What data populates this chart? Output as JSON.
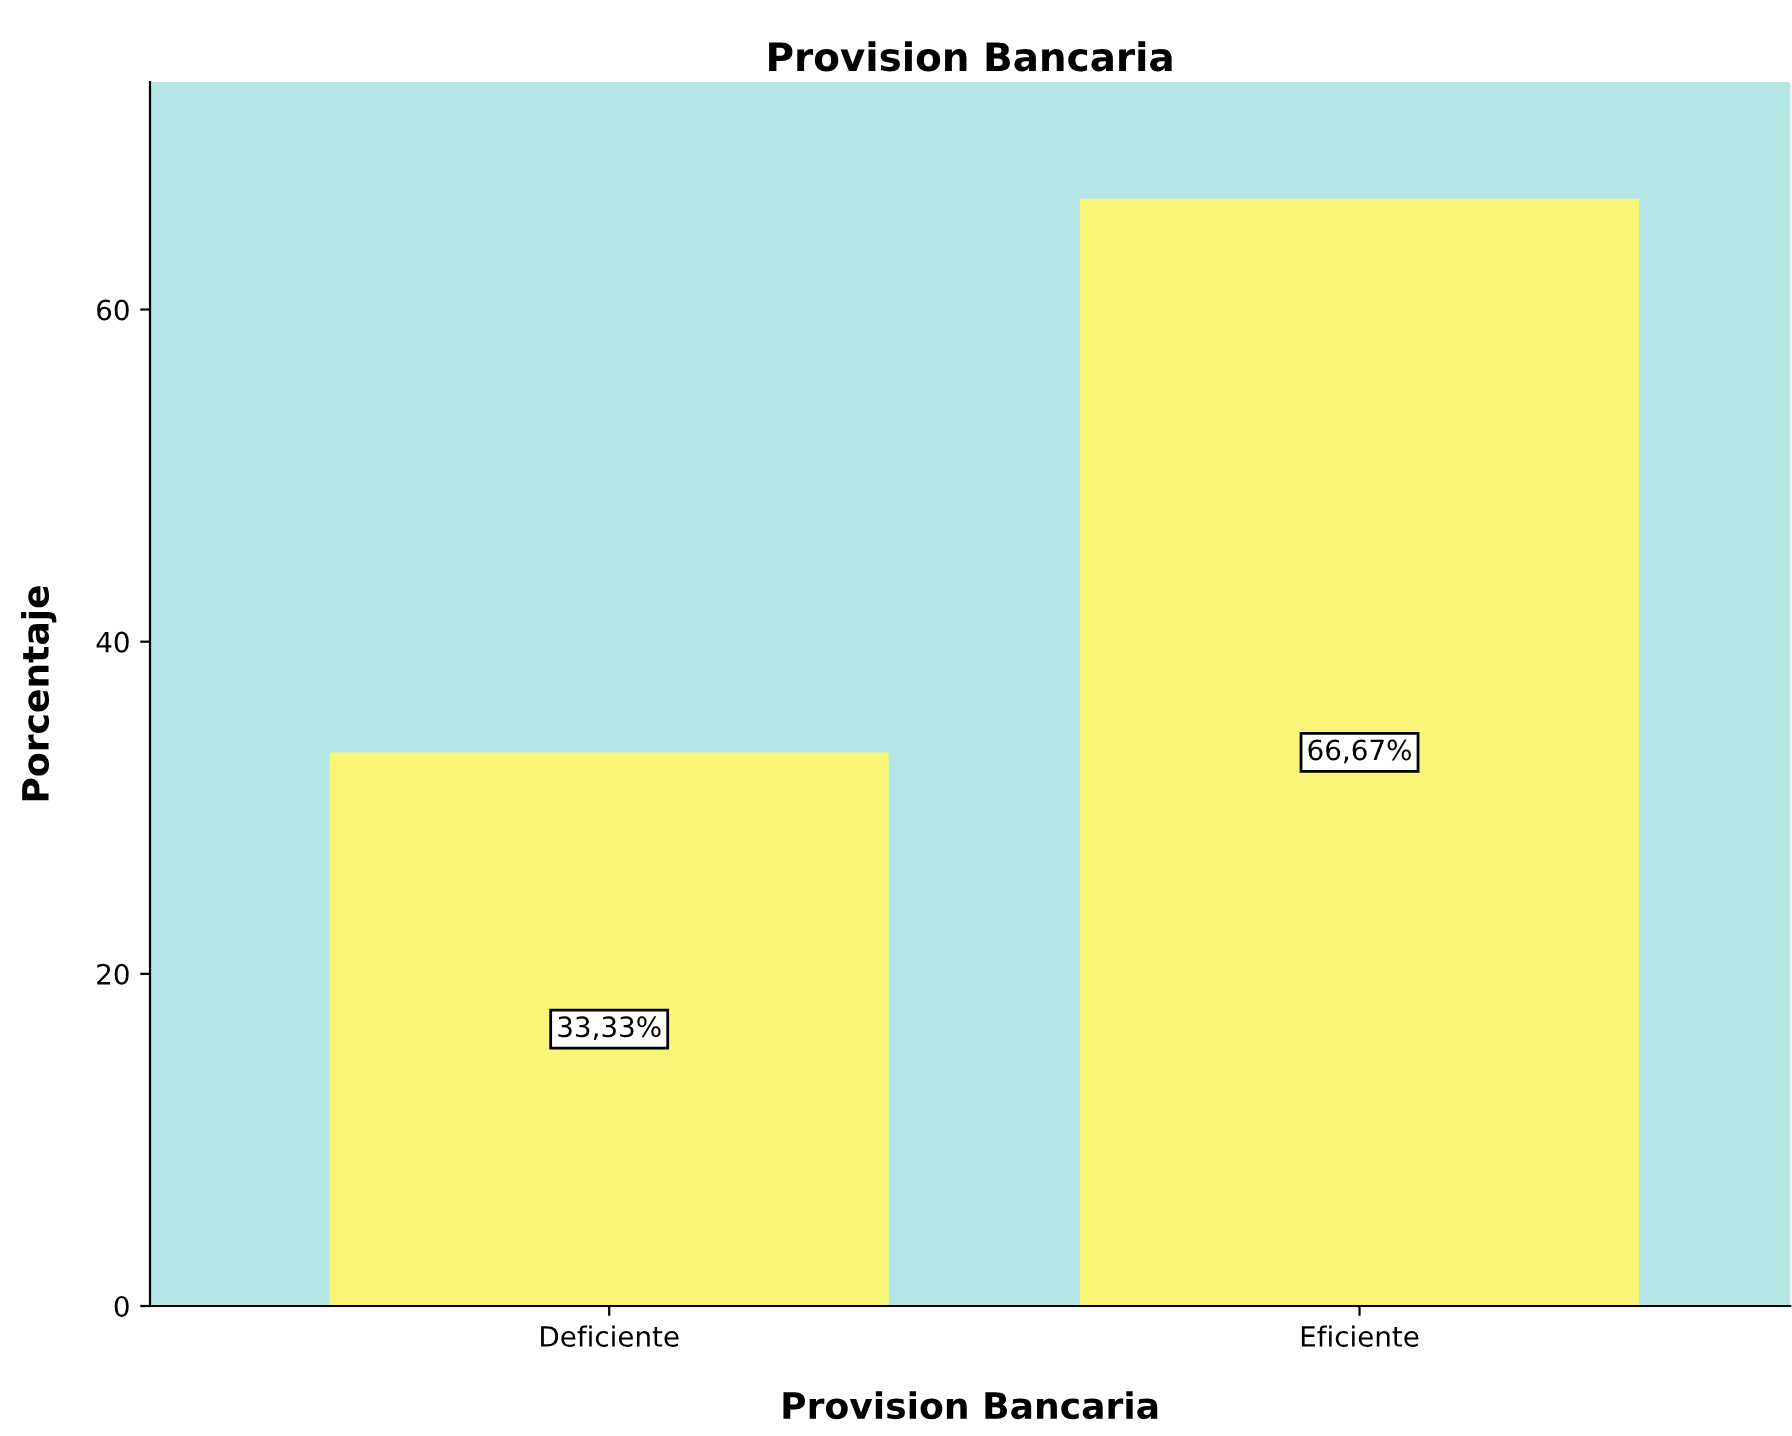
{
  "chart_data": {
    "type": "bar",
    "title": "Provision Bancaria",
    "xlabel": "Provision Bancaria",
    "ylabel": "Porcentaje",
    "categories": [
      "Deficiente",
      "Eficiente"
    ],
    "values": [
      33.33,
      66.67
    ],
    "value_labels": [
      "33,33%",
      "66,67%"
    ],
    "color": "#f9f677",
    "ylim": [
      0,
      73.7
    ],
    "yticks": [
      0,
      20,
      40,
      60
    ],
    "grid": false,
    "legend": false
  }
}
